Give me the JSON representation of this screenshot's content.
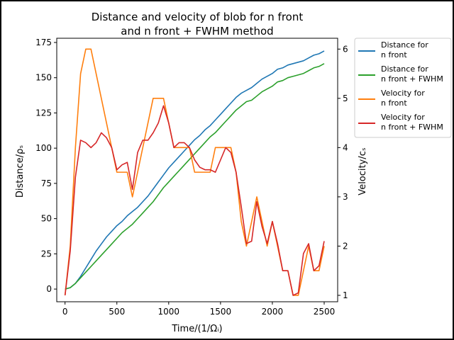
{
  "chart_data": {
    "type": "line",
    "title_line1": "Distance and velocity of blob for n front",
    "title_line2": "and n front + FWHM method",
    "xlabel": "Time/(1/Ωᵢ)",
    "ylabel_left": "Distance/ρₛ",
    "ylabel_right": "Velocity/cₛ",
    "xlim": [
      -80,
      2630
    ],
    "ylim_left": [
      -9,
      178
    ],
    "ylim_right": [
      0.87,
      6.22
    ],
    "xticks": [
      0,
      500,
      1000,
      1500,
      2000,
      2500
    ],
    "yticks_left": [
      0,
      25,
      50,
      75,
      100,
      125,
      150,
      175
    ],
    "yticks_right": [
      1,
      2,
      3,
      4,
      5,
      6
    ],
    "grid": false,
    "legend_position": "outside-right",
    "series": [
      {
        "name_line1": "Distance for",
        "name_line2": "n front",
        "axis": "left",
        "color": "#1f77b4",
        "x": [
          0,
          50,
          100,
          150,
          200,
          250,
          300,
          350,
          400,
          450,
          500,
          550,
          600,
          650,
          700,
          750,
          800,
          850,
          900,
          950,
          1000,
          1050,
          1100,
          1150,
          1200,
          1250,
          1300,
          1350,
          1400,
          1450,
          1500,
          1550,
          1600,
          1650,
          1700,
          1750,
          1800,
          1850,
          1900,
          1950,
          2000,
          2050,
          2100,
          2150,
          2200,
          2250,
          2300,
          2350,
          2400,
          2450,
          2500
        ],
        "values": [
          0,
          1,
          4,
          9,
          15,
          21,
          27,
          32,
          37,
          41,
          45,
          48,
          52,
          55,
          58,
          62,
          66,
          71,
          76,
          81,
          86,
          90,
          94,
          98,
          102,
          106,
          109,
          113,
          116,
          120,
          124,
          128,
          132,
          136,
          139,
          141,
          143,
          146,
          149,
          151,
          153,
          156,
          157,
          159,
          160,
          161,
          162,
          164,
          166,
          167,
          169
        ]
      },
      {
        "name_line1": "Distance for",
        "name_line2": "n front + FWHM",
        "axis": "left",
        "color": "#2ca02c",
        "x": [
          0,
          50,
          100,
          150,
          200,
          250,
          300,
          350,
          400,
          450,
          500,
          550,
          600,
          650,
          700,
          750,
          800,
          850,
          900,
          950,
          1000,
          1050,
          1100,
          1150,
          1200,
          1250,
          1300,
          1350,
          1400,
          1450,
          1500,
          1550,
          1600,
          1650,
          1700,
          1750,
          1800,
          1850,
          1900,
          1950,
          2000,
          2050,
          2100,
          2150,
          2200,
          2250,
          2300,
          2350,
          2400,
          2450,
          2500
        ],
        "values": [
          0,
          1,
          4,
          8,
          12,
          16,
          20,
          24,
          28,
          32,
          36,
          40,
          43,
          46,
          50,
          54,
          58,
          62,
          67,
          72,
          76,
          80,
          84,
          88,
          92,
          96,
          100,
          104,
          108,
          111,
          115,
          119,
          123,
          127,
          130,
          133,
          134,
          137,
          140,
          142,
          144,
          147,
          148,
          150,
          151,
          152,
          153,
          155,
          157,
          158,
          160
        ]
      },
      {
        "name_line1": "Velocity for",
        "name_line2": "n front",
        "axis": "right",
        "color": "#ff7f0e",
        "x": [
          0,
          50,
          100,
          150,
          200,
          250,
          300,
          350,
          400,
          450,
          500,
          550,
          600,
          650,
          700,
          750,
          800,
          850,
          900,
          950,
          1000,
          1050,
          1100,
          1150,
          1200,
          1250,
          1300,
          1350,
          1400,
          1450,
          1500,
          1550,
          1600,
          1650,
          1700,
          1750,
          1800,
          1850,
          1900,
          1950,
          2000,
          2050,
          2100,
          2150,
          2200,
          2250,
          2300,
          2350,
          2400,
          2450,
          2500
        ],
        "values": [
          1.0,
          2.0,
          4.0,
          5.5,
          6.0,
          6.0,
          5.5,
          5.0,
          4.5,
          4.0,
          3.5,
          3.5,
          3.5,
          3.0,
          3.5,
          4.0,
          4.5,
          5.0,
          5.0,
          5.0,
          4.5,
          4.0,
          4.0,
          4.0,
          4.0,
          3.5,
          3.5,
          3.5,
          3.5,
          4.0,
          4.0,
          4.0,
          4.0,
          3.5,
          2.5,
          2.0,
          2.5,
          3.0,
          2.5,
          2.0,
          2.5,
          2.0,
          1.5,
          1.5,
          1.0,
          1.0,
          1.5,
          2.0,
          1.5,
          1.5,
          2.0
        ]
      },
      {
        "name_line1": "Velocity for",
        "name_line2": "n front + FWHM",
        "axis": "right",
        "color": "#d62728",
        "x": [
          0,
          50,
          100,
          150,
          200,
          250,
          300,
          350,
          400,
          450,
          500,
          550,
          600,
          650,
          700,
          750,
          800,
          850,
          900,
          950,
          1000,
          1050,
          1100,
          1150,
          1200,
          1250,
          1300,
          1350,
          1400,
          1450,
          1500,
          1550,
          1600,
          1650,
          1700,
          1750,
          1800,
          1850,
          1900,
          1950,
          2000,
          2050,
          2100,
          2150,
          2200,
          2250,
          2300,
          2350,
          2400,
          2450,
          2500
        ],
        "values": [
          1.0,
          1.9,
          3.4,
          4.15,
          4.1,
          4.0,
          4.1,
          4.3,
          4.2,
          4.0,
          3.55,
          3.65,
          3.7,
          3.15,
          3.9,
          4.15,
          4.15,
          4.3,
          4.5,
          4.85,
          4.5,
          4.0,
          4.1,
          4.1,
          4.0,
          3.75,
          3.6,
          3.55,
          3.55,
          3.5,
          3.75,
          4.0,
          3.9,
          3.5,
          2.8,
          2.05,
          2.1,
          2.9,
          2.4,
          2.05,
          2.5,
          2.05,
          1.5,
          1.5,
          1.0,
          1.05,
          1.85,
          2.05,
          1.5,
          1.6,
          2.1
        ]
      }
    ]
  }
}
